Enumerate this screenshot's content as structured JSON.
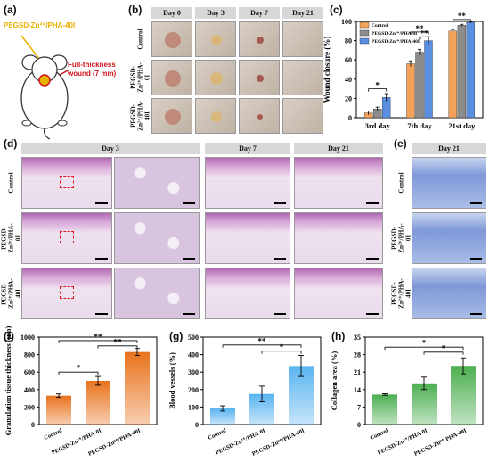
{
  "panels": {
    "a": {
      "label": "(a)",
      "implant_label": "PEGSD-Zn²⁺/PHA-40I",
      "wound_label": "Full-thickness",
      "wound_label2": "wound (7 mm)",
      "colors": {
        "implant": "#e8b000",
        "wound": "#d0121b"
      }
    },
    "b": {
      "label": "(b)",
      "columns": [
        "Day 0",
        "Day 3",
        "Day 7",
        "Day 21"
      ],
      "rows": [
        "Control",
        "PEGSD-Zn²⁺/PHA-0I",
        "PEGSD-Zn²⁺/PHA-40I"
      ]
    },
    "d": {
      "label": "(d)",
      "headers": [
        "Day 3",
        "Day 7",
        "Day 21"
      ],
      "rows": [
        "Control",
        "PEGSD-Zn²⁺/PHA-0I",
        "PEGSD-Zn²⁺/PHA-40I"
      ]
    },
    "e": {
      "label": "(e)",
      "header": "Day 21",
      "rows": [
        "Control",
        "PEGSD-Zn²⁺/PHA-0I",
        "PEGSD-Zn²⁺/PHA-40I"
      ]
    }
  },
  "chart_data": [
    {
      "panel": "(c)",
      "type": "bar",
      "categories": [
        "3rd day",
        "7th day",
        "21st day"
      ],
      "ylabel": "Wound closure (%)",
      "ylim": [
        0,
        100
      ],
      "yticks": [
        0,
        20,
        40,
        60,
        80,
        100
      ],
      "legend_position": "top-left",
      "series": [
        {
          "name": "Control",
          "color": "#f4a259",
          "values": [
            5,
            56,
            90
          ],
          "errors": [
            2,
            3,
            1.5
          ]
        },
        {
          "name": "PEGSD-Zn²⁺/PHA-0I",
          "color": "#8c8c8c",
          "values": [
            9,
            68,
            96
          ],
          "errors": [
            2,
            3,
            1
          ]
        },
        {
          "name": "PEGSD-Zn²⁺/PHA-40I",
          "color": "#5a8ee0",
          "values": [
            21,
            80,
            99
          ],
          "errors": [
            4,
            4,
            0.5
          ]
        }
      ],
      "significance": [
        "*",
        "**",
        "**",
        "**"
      ]
    },
    {
      "panel": "(f)",
      "type": "bar",
      "categories": [
        "Control",
        "PEGSD-Zn²⁺/PHA-0I",
        "PEGSD-Zn²⁺/PHA-40I"
      ],
      "ylabel": "Granulation tissue thickness (μm)",
      "ylim": [
        0,
        1000
      ],
      "yticks": [
        0,
        200,
        400,
        600,
        800,
        1000
      ],
      "color": "#e8731d",
      "values": [
        330,
        500,
        830
      ],
      "errors": [
        20,
        50,
        40
      ],
      "significance": [
        "**",
        "*",
        "**"
      ]
    },
    {
      "panel": "(g)",
      "type": "bar",
      "categories": [
        "Control",
        "PEGSD-Zn²⁺/PHA-0I",
        "PEGSD-Zn²⁺/PHA-40I"
      ],
      "ylabel": "Blood vessels (%)",
      "ylim": [
        0,
        500
      ],
      "yticks": [
        0,
        100,
        200,
        300,
        400,
        500
      ],
      "color": "#5ab4f0",
      "values": [
        92,
        175,
        335
      ],
      "errors": [
        15,
        45,
        60
      ],
      "significance": [
        "**",
        "*"
      ]
    },
    {
      "panel": "(h)",
      "type": "bar",
      "categories": [
        "Control",
        "PEGSD-Zn²⁺/PHA-0I",
        "PEGSD-Zn²⁺/PHA-40I"
      ],
      "ylabel": "Collagen area (%)",
      "ylim": [
        0,
        35
      ],
      "yticks": [
        0,
        7,
        14,
        21,
        28,
        35
      ],
      "color": "#4caf50",
      "values": [
        12,
        16.5,
        23.5
      ],
      "errors": [
        0.3,
        2.5,
        3.2
      ],
      "significance": [
        "*",
        "*"
      ]
    }
  ]
}
